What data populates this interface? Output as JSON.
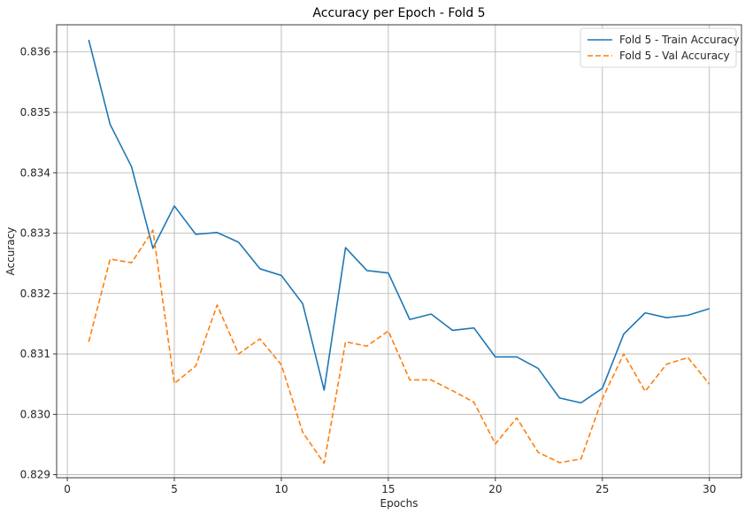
{
  "chart_data": {
    "type": "line",
    "title": "Accuracy per Epoch - Fold 5",
    "xlabel": "Epochs",
    "ylabel": "Accuracy",
    "xlim": [
      -0.5,
      31.5
    ],
    "ylim": [
      0.82895,
      0.83645
    ],
    "xticks": [
      0,
      5,
      10,
      15,
      20,
      25,
      30
    ],
    "yticks": [
      0.829,
      0.83,
      0.831,
      0.832,
      0.833,
      0.834,
      0.835,
      0.836
    ],
    "grid": true,
    "legend": "top-right",
    "x": [
      1,
      2,
      3,
      4,
      5,
      6,
      7,
      8,
      9,
      10,
      11,
      12,
      13,
      14,
      15,
      16,
      17,
      18,
      19,
      20,
      21,
      22,
      23,
      24,
      25,
      26,
      27,
      28,
      29,
      30
    ],
    "series": [
      {
        "name": "Fold 5 - Train Accuracy",
        "color": "#1f77b4",
        "style": "solid",
        "values": [
          0.8362,
          0.8348,
          0.8341,
          0.83275,
          0.83345,
          0.83298,
          0.83301,
          0.83285,
          0.83241,
          0.8323,
          0.83183,
          0.8304,
          0.83276,
          0.83238,
          0.83234,
          0.83157,
          0.83166,
          0.83139,
          0.83143,
          0.83095,
          0.83095,
          0.83076,
          0.83027,
          0.83019,
          0.83043,
          0.83133,
          0.83168,
          0.8316,
          0.83164,
          0.83175
        ]
      },
      {
        "name": "Fold 5 - Val Accuracy",
        "color": "#ff7f0e",
        "style": "dashed",
        "values": [
          0.8312,
          0.83257,
          0.83251,
          0.83305,
          0.83051,
          0.8308,
          0.83181,
          0.831,
          0.83125,
          0.83082,
          0.8297,
          0.82919,
          0.8312,
          0.83113,
          0.83138,
          0.83057,
          0.83057,
          0.83039,
          0.8302,
          0.82951,
          0.82994,
          0.82937,
          0.8292,
          0.82926,
          0.83026,
          0.831,
          0.83038,
          0.83083,
          0.83094,
          0.8305
        ]
      }
    ]
  }
}
